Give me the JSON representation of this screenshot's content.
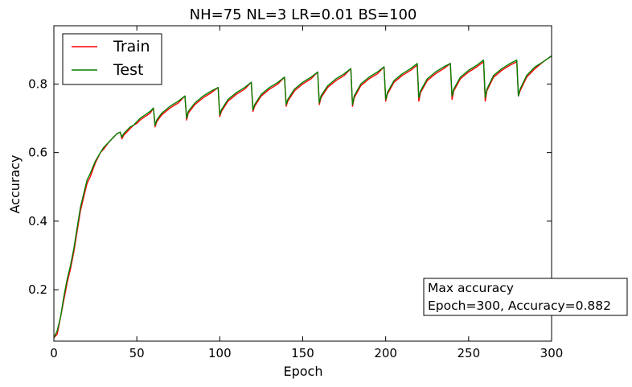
{
  "chart_data": {
    "type": "line",
    "title": "NH=75 NL=3 LR=0.01 BS=100",
    "xlabel": "Epoch",
    "ylabel": "Accuracy",
    "xlim": [
      0,
      300
    ],
    "ylim": [
      0.05,
      0.97
    ],
    "xticks": [
      0,
      50,
      100,
      150,
      200,
      250,
      300
    ],
    "yticks": [
      0.2,
      0.4,
      0.6,
      0.8
    ],
    "grid": false,
    "legend_position": "top-left",
    "series": [
      {
        "name": "Train",
        "color": "#ff0000",
        "x": [
          0,
          2,
          4,
          6,
          8,
          10,
          12,
          14,
          16,
          18,
          20,
          22,
          25,
          28,
          30,
          33,
          36,
          38,
          40,
          41,
          42,
          44,
          46,
          48,
          50,
          52,
          55,
          58,
          60,
          61,
          62,
          65,
          70,
          75,
          79,
          80,
          81,
          85,
          90,
          95,
          99,
          100,
          101,
          105,
          110,
          115,
          119,
          120,
          121,
          125,
          130,
          135,
          139,
          140,
          141,
          145,
          150,
          155,
          159,
          160,
          161,
          165,
          170,
          175,
          179,
          180,
          181,
          185,
          190,
          195,
          199,
          200,
          201,
          205,
          210,
          215,
          219,
          220,
          221,
          225,
          230,
          235,
          239,
          240,
          241,
          245,
          250,
          255,
          259,
          260,
          261,
          265,
          270,
          275,
          279,
          280,
          281,
          285,
          290,
          295,
          300
        ],
        "y": [
          0.06,
          0.07,
          0.12,
          0.17,
          0.22,
          0.26,
          0.31,
          0.37,
          0.43,
          0.47,
          0.51,
          0.53,
          0.57,
          0.6,
          0.61,
          0.63,
          0.645,
          0.655,
          0.66,
          0.64,
          0.65,
          0.66,
          0.67,
          0.68,
          0.685,
          0.695,
          0.705,
          0.715,
          0.73,
          0.675,
          0.69,
          0.71,
          0.73,
          0.745,
          0.765,
          0.695,
          0.715,
          0.74,
          0.76,
          0.775,
          0.79,
          0.705,
          0.72,
          0.75,
          0.77,
          0.785,
          0.805,
          0.72,
          0.735,
          0.765,
          0.785,
          0.8,
          0.82,
          0.735,
          0.75,
          0.78,
          0.8,
          0.815,
          0.835,
          0.74,
          0.76,
          0.79,
          0.81,
          0.825,
          0.845,
          0.735,
          0.76,
          0.795,
          0.815,
          0.83,
          0.85,
          0.75,
          0.77,
          0.805,
          0.825,
          0.84,
          0.855,
          0.75,
          0.775,
          0.81,
          0.83,
          0.845,
          0.86,
          0.755,
          0.78,
          0.815,
          0.835,
          0.85,
          0.865,
          0.75,
          0.78,
          0.82,
          0.84,
          0.855,
          0.865,
          0.765,
          0.78,
          0.82,
          0.845,
          0.865,
          0.882
        ]
      },
      {
        "name": "Test",
        "color": "#008000",
        "x": [
          0,
          2,
          4,
          6,
          8,
          10,
          12,
          14,
          16,
          18,
          20,
          22,
          25,
          28,
          30,
          33,
          36,
          38,
          40,
          41,
          42,
          44,
          46,
          48,
          50,
          52,
          55,
          58,
          60,
          61,
          62,
          65,
          70,
          75,
          79,
          80,
          81,
          85,
          90,
          95,
          99,
          100,
          101,
          105,
          110,
          115,
          119,
          120,
          121,
          125,
          130,
          135,
          139,
          140,
          141,
          145,
          150,
          155,
          159,
          160,
          161,
          165,
          170,
          175,
          179,
          180,
          181,
          185,
          190,
          195,
          199,
          200,
          201,
          205,
          210,
          215,
          219,
          220,
          221,
          225,
          230,
          235,
          239,
          240,
          241,
          245,
          250,
          255,
          259,
          260,
          261,
          265,
          270,
          275,
          279,
          280,
          281,
          285,
          290,
          295,
          300
        ],
        "y": [
          0.06,
          0.08,
          0.12,
          0.18,
          0.23,
          0.27,
          0.32,
          0.38,
          0.44,
          0.48,
          0.52,
          0.54,
          0.575,
          0.6,
          0.615,
          0.63,
          0.645,
          0.655,
          0.66,
          0.645,
          0.655,
          0.665,
          0.675,
          0.68,
          0.69,
          0.7,
          0.71,
          0.72,
          0.73,
          0.68,
          0.695,
          0.715,
          0.735,
          0.75,
          0.765,
          0.7,
          0.72,
          0.745,
          0.765,
          0.78,
          0.79,
          0.71,
          0.725,
          0.755,
          0.775,
          0.79,
          0.805,
          0.725,
          0.74,
          0.77,
          0.79,
          0.805,
          0.82,
          0.74,
          0.755,
          0.785,
          0.805,
          0.82,
          0.835,
          0.745,
          0.765,
          0.795,
          0.815,
          0.83,
          0.845,
          0.74,
          0.765,
          0.8,
          0.82,
          0.835,
          0.85,
          0.755,
          0.775,
          0.81,
          0.83,
          0.845,
          0.86,
          0.76,
          0.78,
          0.815,
          0.835,
          0.85,
          0.86,
          0.765,
          0.785,
          0.82,
          0.84,
          0.855,
          0.87,
          0.76,
          0.785,
          0.825,
          0.845,
          0.86,
          0.87,
          0.765,
          0.785,
          0.825,
          0.85,
          0.865,
          0.882
        ]
      }
    ],
    "annotation": {
      "line1": "Max accuracy",
      "line2": "Epoch=300, Accuracy=0.882"
    }
  }
}
